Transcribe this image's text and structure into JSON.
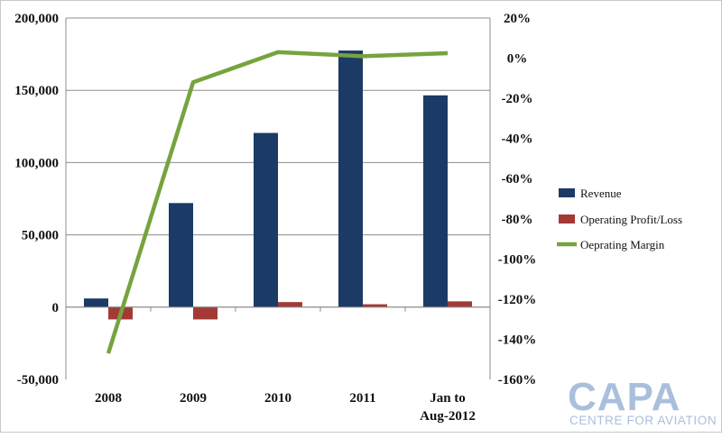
{
  "chart_data": {
    "type": "bar",
    "categories": [
      "2008",
      "2009",
      "2010",
      "2011",
      "Jan to|Aug-2012"
    ],
    "series": [
      {
        "name": "Revenue",
        "kind": "bar",
        "axis": "left",
        "color": "#1b3a66",
        "values": [
          6000,
          72000,
          120500,
          177500,
          146500
        ]
      },
      {
        "name": "Operating Profit/Loss",
        "kind": "bar",
        "axis": "left",
        "color": "#a33a35",
        "values": [
          -8500,
          -8500,
          3500,
          2000,
          4000
        ]
      },
      {
        "name": "Oeprating Margin",
        "kind": "line",
        "axis": "right",
        "color": "#77a33e",
        "values": [
          -147,
          -12,
          3,
          1,
          2.5
        ]
      }
    ],
    "y_left": {
      "min": -50000,
      "max": 200000,
      "step": 50000,
      "ticks": [
        "200,000",
        "150,000",
        "100,000",
        "50,000",
        "0",
        "-50,000"
      ]
    },
    "y_right": {
      "min": -160,
      "max": 20,
      "step": 20,
      "ticks": [
        "20%",
        "0%",
        "-20%",
        "-40%",
        "-60%",
        "-80%",
        "-100%",
        "-120%",
        "-140%",
        "-160%"
      ]
    },
    "grid": true,
    "legend_position": "right",
    "title": "",
    "xlabel": "",
    "ylabel": ""
  },
  "logo": {
    "main": "CAPA",
    "sub": "CENTRE FOR AVIATION",
    "color": "#a9bfdc"
  }
}
